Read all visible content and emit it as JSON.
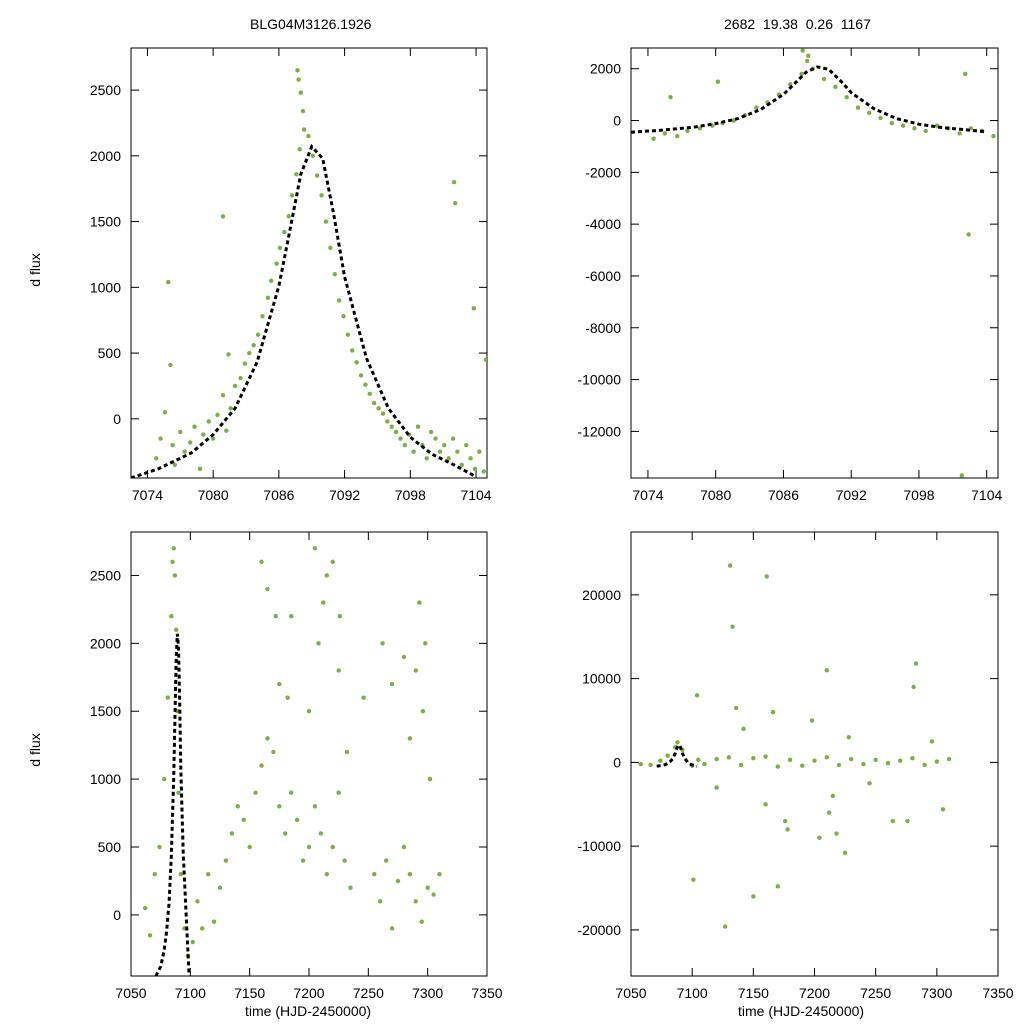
{
  "figure": {
    "title_left": "BLG04M3126.1926",
    "title_right": "2682  19.38  0.26  1167",
    "ylabel": "d flux",
    "xlabel": "time (HJD-2450000)",
    "colors": {
      "points": "#7fad45",
      "model": "#000000",
      "frame": "#000000"
    }
  },
  "chart_data": [
    {
      "id": "top-left",
      "type": "scatter",
      "title": "BLG04M3126.1926",
      "xlabel": "",
      "ylabel": "d flux",
      "xlim": [
        7072.5,
        7105
      ],
      "ylim": [
        -450,
        2820
      ],
      "xticks": [
        7074,
        7080,
        7086,
        7092,
        7098,
        7104
      ],
      "yticks": [
        0,
        500,
        1000,
        1500,
        2000,
        2500
      ],
      "series": [
        {
          "name": "data",
          "kind": "points",
          "x": [
            7074.8,
            7075.2,
            7075.6,
            7076.3,
            7076.5,
            7077.0,
            7077.4,
            7077.9,
            7078.3,
            7078.8,
            7079.1,
            7079.6,
            7080.0,
            7080.4,
            7080.9,
            7081.2,
            7081.6,
            7082.0,
            7082.5,
            7082.9,
            7083.3,
            7083.7,
            7084.1,
            7084.5,
            7085.0,
            7085.3,
            7085.8,
            7086.1,
            7086.5,
            7086.9,
            7087.2,
            7087.6,
            7087.9,
            7088.3,
            7088.7,
            7089.1,
            7089.5,
            7089.9,
            7090.3,
            7090.7,
            7091.1,
            7091.5,
            7091.9,
            7092.3,
            7092.7,
            7093.1,
            7093.5,
            7093.9,
            7094.3,
            7094.7,
            7095.1,
            7095.5,
            7095.9,
            7096.3,
            7096.7,
            7097.1,
            7097.5,
            7097.9,
            7098.3,
            7098.7,
            7099.1,
            7099.5,
            7099.9,
            7100.3,
            7100.7,
            7101.1,
            7101.5,
            7101.9,
            7102.3,
            7102.7,
            7103.1,
            7103.5,
            7103.9,
            7104.3,
            7104.7,
            7075.9,
            7076.1,
            7080.9,
            7081.4,
            7087.7,
            7087.8,
            7088.0,
            7088.2,
            7102.0,
            7102.1,
            7103.8,
            7104.9
          ],
          "y": [
            -300,
            -150,
            50,
            -200,
            -350,
            -100,
            -250,
            -180,
            -60,
            -380,
            -120,
            -20,
            -150,
            30,
            180,
            -90,
            80,
            250,
            310,
            420,
            500,
            560,
            640,
            780,
            920,
            1050,
            1180,
            1300,
            1420,
            1540,
            1700,
            1860,
            2050,
            2200,
            2150,
            2000,
            1850,
            1700,
            1500,
            1300,
            1100,
            900,
            780,
            640,
            520,
            430,
            330,
            260,
            190,
            120,
            80,
            40,
            -20,
            -60,
            -100,
            -150,
            -200,
            -120,
            -250,
            -60,
            -200,
            -300,
            -100,
            -150,
            -250,
            -200,
            -300,
            -150,
            -250,
            -350,
            -200,
            -300,
            -380,
            -250,
            -400,
            1040,
            410,
            1540,
            490,
            2650,
            2580,
            2480,
            2340,
            1800,
            1640,
            840,
            450
          ]
        },
        {
          "name": "model",
          "kind": "line",
          "x": [
            7072.5,
            7075,
            7078,
            7080,
            7082,
            7084,
            7086,
            7087,
            7088,
            7089,
            7090,
            7091,
            7092,
            7094,
            7096,
            7098,
            7100,
            7102,
            7104
          ],
          "y": [
            -450,
            -380,
            -260,
            -120,
            80,
            430,
            1010,
            1430,
            1860,
            2070,
            1980,
            1560,
            1080,
            460,
            80,
            -140,
            -270,
            -350,
            -440
          ]
        }
      ]
    },
    {
      "id": "top-right",
      "type": "scatter",
      "title": "2682  19.38  0.26  1167",
      "xlabel": "",
      "ylabel": "",
      "xlim": [
        7072.5,
        7105
      ],
      "ylim": [
        -13800,
        2800
      ],
      "xticks": [
        7074,
        7080,
        7086,
        7092,
        7098,
        7104
      ],
      "yticks": [
        2000,
        0,
        -2000,
        -4000,
        -6000,
        -8000,
        -10000,
        -12000
      ],
      "series": [
        {
          "name": "data",
          "kind": "points",
          "x": [
            7074.5,
            7075.5,
            7076.6,
            7077.5,
            7078.6,
            7079.7,
            7080.6,
            7081.6,
            7082.6,
            7083.6,
            7084.6,
            7085.6,
            7086.6,
            7087.6,
            7088.1,
            7088.6,
            7089.6,
            7090.6,
            7091.6,
            7092.6,
            7093.6,
            7094.6,
            7095.6,
            7096.6,
            7097.6,
            7098.6,
            7099.6,
            7100.6,
            7101.6,
            7102.6,
            7103.6,
            7104.6,
            7076.0,
            7080.2,
            7087.7,
            7088.2,
            7102.1,
            7102.4,
            7101.8
          ],
          "y": [
            -700,
            -500,
            -600,
            -400,
            -300,
            -200,
            -100,
            0,
            200,
            500,
            700,
            1000,
            1400,
            1800,
            2300,
            2000,
            1600,
            1300,
            900,
            500,
            300,
            100,
            -100,
            -200,
            -300,
            -400,
            -200,
            -300,
            -500,
            -300,
            -400,
            -600,
            900,
            1500,
            2700,
            2500,
            1800,
            -4400,
            -13700
          ]
        },
        {
          "name": "model",
          "kind": "line",
          "x": [
            7072.5,
            7075,
            7078,
            7080,
            7082,
            7084,
            7086,
            7087,
            7088,
            7089,
            7090,
            7091,
            7092,
            7094,
            7096,
            7098,
            7100,
            7102,
            7104
          ],
          "y": [
            -450,
            -380,
            -260,
            -120,
            80,
            430,
            1010,
            1430,
            1860,
            2070,
            1980,
            1560,
            1080,
            460,
            80,
            -140,
            -270,
            -350,
            -440
          ]
        }
      ]
    },
    {
      "id": "bottom-left",
      "type": "scatter",
      "title": "",
      "xlabel": "time (HJD-2450000)",
      "ylabel": "d flux",
      "xlim": [
        7050,
        7350
      ],
      "ylim": [
        -450,
        2820
      ],
      "xticks": [
        7050,
        7100,
        7150,
        7200,
        7250,
        7300,
        7350
      ],
      "yticks": [
        0,
        500,
        1000,
        1500,
        2000,
        2500
      ],
      "series": [
        {
          "name": "data",
          "kind": "points",
          "x": [
            7062,
            7066,
            7070,
            7074,
            7078,
            7081,
            7084,
            7085,
            7086,
            7087,
            7088,
            7089,
            7090,
            7092,
            7095,
            7098,
            7102,
            7106,
            7110,
            7115,
            7120,
            7125,
            7130,
            7135,
            7140,
            7145,
            7150,
            7155,
            7160,
            7165,
            7170,
            7175,
            7180,
            7185,
            7190,
            7195,
            7200,
            7205,
            7210,
            7215,
            7220,
            7225,
            7230,
            7235,
            7255,
            7260,
            7265,
            7270,
            7275,
            7280,
            7285,
            7290,
            7295,
            7300,
            7305,
            7310,
            7160,
            7165,
            7172,
            7175,
            7182,
            7200,
            7208,
            7215,
            7225,
            7232,
            7246,
            7262,
            7270,
            7285,
            7290,
            7296,
            7302,
            7185,
            7205,
            7212,
            7220,
            7226,
            7280,
            7293,
            7298
          ],
          "y": [
            50,
            -150,
            300,
            500,
            1000,
            1600,
            2200,
            2600,
            2700,
            2500,
            2100,
            1500,
            900,
            300,
            -100,
            -300,
            -200,
            100,
            -100,
            300,
            -50,
            200,
            400,
            600,
            800,
            700,
            500,
            900,
            1100,
            1300,
            1200,
            800,
            600,
            900,
            700,
            400,
            500,
            800,
            600,
            300,
            500,
            900,
            400,
            200,
            300,
            100,
            400,
            -100,
            250,
            500,
            300,
            100,
            -50,
            200,
            150,
            300,
            2600,
            2400,
            2200,
            1700,
            1600,
            1500,
            2000,
            2500,
            1800,
            1200,
            1600,
            2000,
            1700,
            1300,
            1800,
            1500,
            1000,
            2200,
            2700,
            2300,
            2600,
            2200,
            1900,
            2300,
            2000
          ]
        },
        {
          "name": "model",
          "kind": "line",
          "x": [
            7071,
            7075,
            7078,
            7080,
            7082,
            7084,
            7086,
            7087,
            7088,
            7089,
            7090,
            7091,
            7092,
            7094,
            7097,
            7099
          ],
          "y": [
            -450,
            -380,
            -260,
            -120,
            80,
            430,
            1010,
            1430,
            1860,
            2070,
            1980,
            1560,
            1080,
            460,
            -100,
            -450
          ]
        }
      ]
    },
    {
      "id": "bottom-right",
      "type": "scatter",
      "title": "",
      "xlabel": "time (HJD-2450000)",
      "ylabel": "",
      "xlim": [
        7050,
        7350
      ],
      "ylim": [
        -25500,
        27500
      ],
      "xticks": [
        7050,
        7100,
        7150,
        7200,
        7250,
        7300,
        7350
      ],
      "yticks": [
        20000,
        10000,
        0,
        -10000,
        -20000
      ],
      "series": [
        {
          "name": "data",
          "kind": "points",
          "x": [
            7058,
            7066,
            7074,
            7080,
            7086,
            7088,
            7092,
            7100,
            7105,
            7110,
            7120,
            7130,
            7140,
            7150,
            7160,
            7170,
            7180,
            7190,
            7200,
            7210,
            7220,
            7230,
            7240,
            7250,
            7260,
            7270,
            7280,
            7290,
            7300,
            7310,
            7101,
            7104,
            7131,
            7133,
            7150,
            7161,
            7170,
            7178,
            7204,
            7210,
            7212,
            7218,
            7225,
            7264,
            7276,
            7281,
            7283,
            7305,
            7120,
            7142,
            7160,
            7166,
            7176,
            7198,
            7215,
            7228,
            7245,
            7296,
            7127,
            7136
          ],
          "y": [
            -200,
            -300,
            200,
            800,
            1800,
            2400,
            1500,
            -400,
            300,
            -200,
            400,
            600,
            -300,
            500,
            700,
            -500,
            300,
            -400,
            200,
            600,
            -300,
            400,
            -200,
            300,
            -100,
            200,
            500,
            -300,
            100,
            400,
            -14000,
            8000,
            23500,
            16200,
            -16000,
            22200,
            -14800,
            -8000,
            -9000,
            11000,
            -6000,
            -8500,
            -10800,
            -7000,
            -7000,
            9000,
            11800,
            -5600,
            -3000,
            4000,
            -5000,
            6000,
            -7000,
            5000,
            -4000,
            3000,
            -2500,
            2500,
            -19600,
            6500
          ]
        },
        {
          "name": "model",
          "kind": "line",
          "x": [
            7071,
            7075,
            7078,
            7080,
            7082,
            7084,
            7086,
            7087,
            7088,
            7089,
            7090,
            7091,
            7092,
            7094,
            7097,
            7100,
            7104
          ],
          "y": [
            -450,
            -380,
            -260,
            -120,
            80,
            430,
            1010,
            1430,
            1860,
            2070,
            1980,
            1560,
            1080,
            460,
            -100,
            -300,
            -440
          ]
        }
      ]
    }
  ]
}
